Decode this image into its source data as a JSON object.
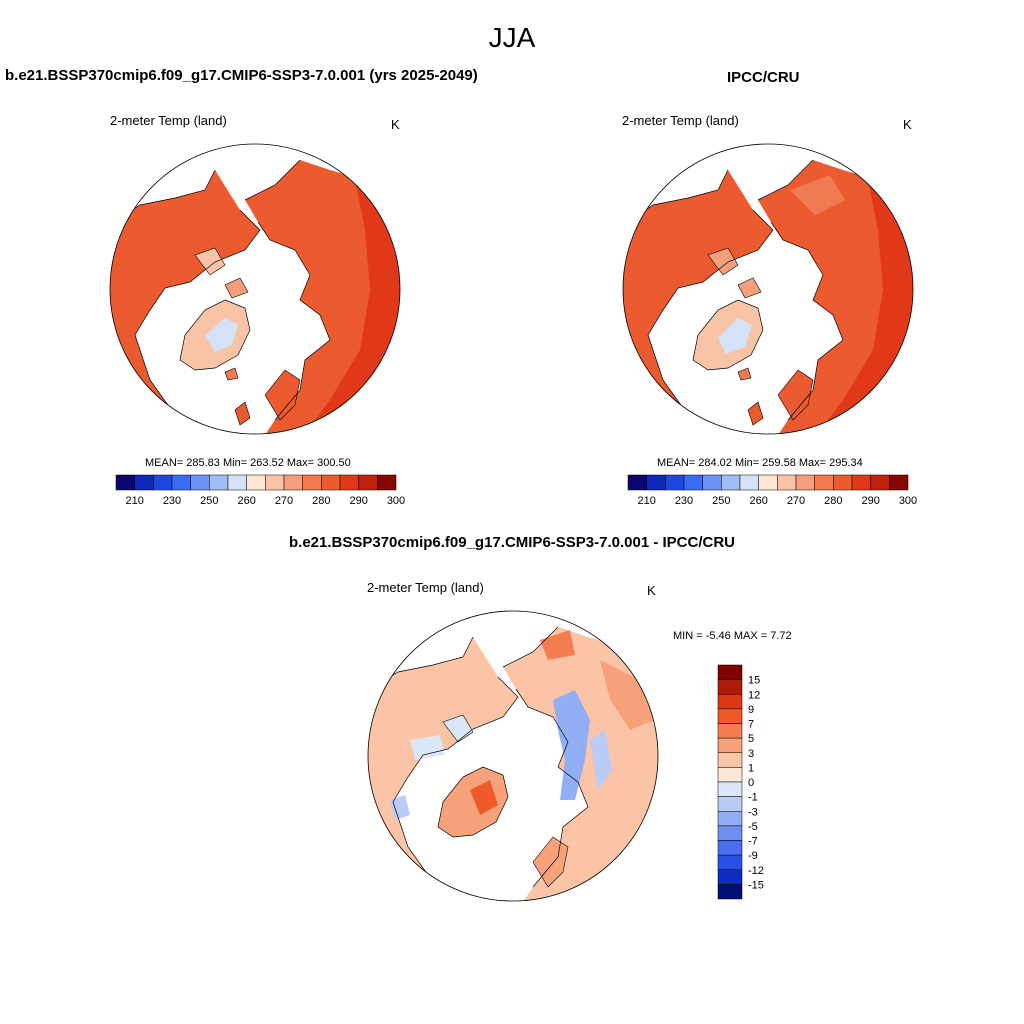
{
  "season_title": "JJA",
  "panels": [
    {
      "title": "b.e21.BSSP370cmip6.f09_g17.CMIP6-SSP3-7.0.001 (yrs 2025-2049)",
      "variable": "2-meter Temp (land)",
      "units": "K",
      "stats_text": "MEAN= 285.83  Min= 263.52  Max= 300.50",
      "colorbar": {
        "colors": [
          "#08086e",
          "#1028b8",
          "#1e48e0",
          "#3a6cf0",
          "#6c92f2",
          "#a2bcf4",
          "#d4e2f8",
          "#fde6d4",
          "#f9c4a6",
          "#f59e7c",
          "#f07a52",
          "#ec5a30",
          "#e03818",
          "#c0200c",
          "#880600"
        ],
        "labels": [
          "210",
          "230",
          "250",
          "260",
          "270",
          "280",
          "290",
          "300"
        ]
      }
    },
    {
      "title": "IPCC/CRU",
      "variable": "2-meter Temp (land)",
      "units": "K",
      "stats_text": "MEAN= 284.02  Min= 259.58  Max= 295.34",
      "colorbar": {
        "colors": [
          "#08086e",
          "#1028b8",
          "#1e48e0",
          "#3a6cf0",
          "#6c92f2",
          "#a2bcf4",
          "#d4e2f8",
          "#fde6d4",
          "#f9c4a6",
          "#f59e7c",
          "#f07a52",
          "#ec5a30",
          "#e03818",
          "#c0200c",
          "#880600"
        ],
        "labels": [
          "210",
          "230",
          "250",
          "260",
          "270",
          "280",
          "290",
          "300"
        ]
      }
    },
    {
      "title": "b.e21.BSSP370cmip6.f09_g17.CMIP6-SSP3-7.0.001 - IPCC/CRU",
      "variable": "2-meter Temp (land)",
      "units": "K",
      "stats_text": "MIN =  -5.46 MAX =   7.72",
      "colorbar": {
        "colors": [
          "#800000",
          "#b01a08",
          "#dc3812",
          "#f05a2a",
          "#f47e52",
          "#f8a27c",
          "#fbc4a6",
          "#fde6d6",
          "#dbe6f8",
          "#b8ccf6",
          "#92aef4",
          "#6e8ef2",
          "#4a6ef0",
          "#2850e6",
          "#0c2cc4",
          "#001078"
        ],
        "labels": [
          "15",
          "12",
          "9",
          "7",
          "5",
          "3",
          "1",
          "0",
          "-1",
          "-3",
          "-5",
          "-7",
          "-9",
          "-12",
          "-15"
        ]
      }
    }
  ]
}
